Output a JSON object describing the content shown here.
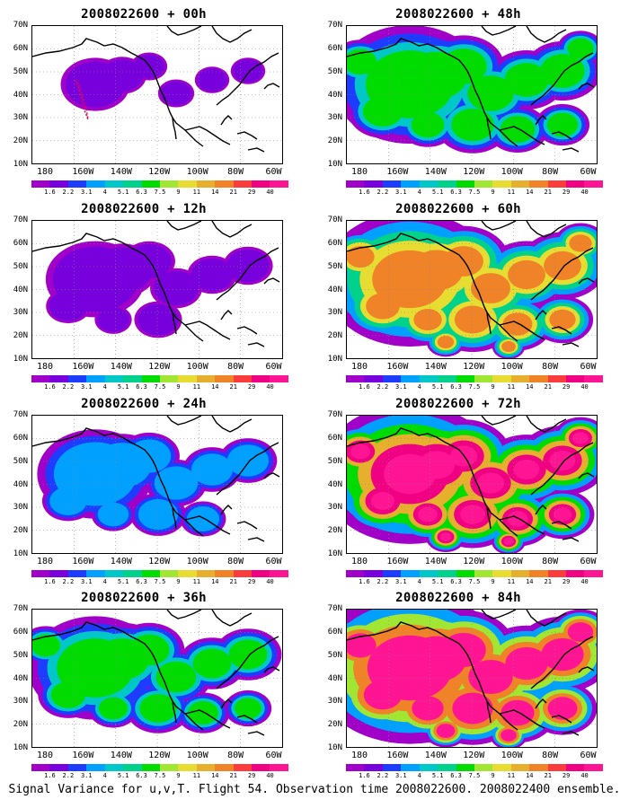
{
  "caption": "Signal Variance for u,v,T. Flight 54. Observation time 2008022600. 2008022400 ensemble.",
  "panels": [
    {
      "title": "2008022600 + 00h",
      "coverage": 0.25,
      "intensity": 0.8
    },
    {
      "title": "2008022600 + 12h",
      "coverage": 0.45,
      "intensity": 1.2
    },
    {
      "title": "2008022600 + 24h",
      "coverage": 0.55,
      "intensity": 1.8
    },
    {
      "title": "2008022600 + 36h",
      "coverage": 0.65,
      "intensity": 2.3
    },
    {
      "title": "2008022600 + 48h",
      "coverage": 0.75,
      "intensity": 2.3
    },
    {
      "title": "2008022600 + 60h",
      "coverage": 0.85,
      "intensity": 2.8
    },
    {
      "title": "2008022600 + 72h",
      "coverage": 0.88,
      "intensity": 3.3
    },
    {
      "title": "2008022600 + 84h",
      "coverage": 0.95,
      "intensity": 3.8
    }
  ],
  "y_ticks": [
    "70N",
    "60N",
    "50N",
    "40N",
    "30N",
    "20N",
    "10N"
  ],
  "x_ticks": [
    "180",
    "160W",
    "140W",
    "120W",
    "100W",
    "80W",
    "60W"
  ],
  "colorbar": {
    "labels": [
      "1.6",
      "2.2",
      "3.1",
      "4",
      "5.1",
      "6.3",
      "7.5",
      "9",
      "11",
      "14",
      "21",
      "29",
      "40"
    ],
    "colors": [
      "#a000c8",
      "#7800dc",
      "#1e3cff",
      "#00a0ff",
      "#00c8c8",
      "#00d28c",
      "#00dc00",
      "#a0e632",
      "#e6dc32",
      "#e6af2d",
      "#f08228",
      "#fa3c3c",
      "#f00082",
      "#ff1493"
    ]
  }
}
